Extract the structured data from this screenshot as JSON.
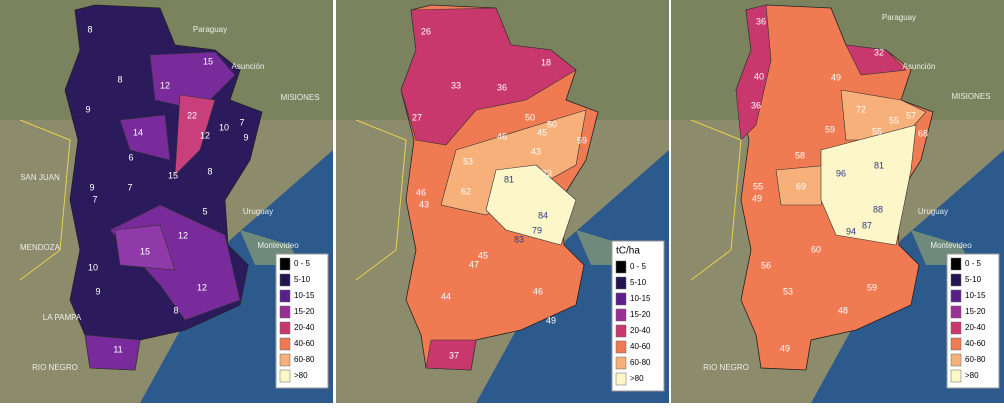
{
  "panels": [
    {
      "region_labels": [
        8,
        15,
        8,
        12,
        9,
        22,
        14,
        12,
        10,
        7,
        9,
        6,
        15,
        8,
        9,
        7,
        7,
        5,
        12,
        15,
        10,
        12,
        9,
        8,
        11
      ],
      "places": [
        "Paraguay",
        "Asunción",
        "MISIONES",
        "Uruguay",
        "Montevideo",
        "SAN JUAN",
        "MENDOZA",
        "LA PAMPA",
        "RIO NEGRO"
      ]
    },
    {
      "region_labels": [
        26,
        18,
        33,
        36,
        27,
        50,
        45,
        50,
        59,
        46,
        43,
        53,
        81,
        73,
        62,
        46,
        43,
        84,
        79,
        83,
        45,
        47,
        44,
        46,
        49,
        37
      ],
      "places": []
    },
    {
      "region_labels": [
        36,
        32,
        40,
        49,
        36,
        72,
        55,
        57,
        59,
        55,
        68,
        58,
        81,
        96,
        55,
        49,
        69,
        88,
        87,
        94,
        60,
        56,
        53,
        59,
        48,
        49
      ],
      "places": [
        "Paraguay",
        "Asunción",
        "MISIONES",
        "Uruguay",
        "Montevideo",
        "RIO NEGRO"
      ]
    }
  ],
  "legend": {
    "title": "tC/ha",
    "items": [
      "0 - 5",
      "5-10",
      "10-15",
      "15-20",
      "20-40",
      "40-60",
      "60-80",
      ">80"
    ]
  }
}
